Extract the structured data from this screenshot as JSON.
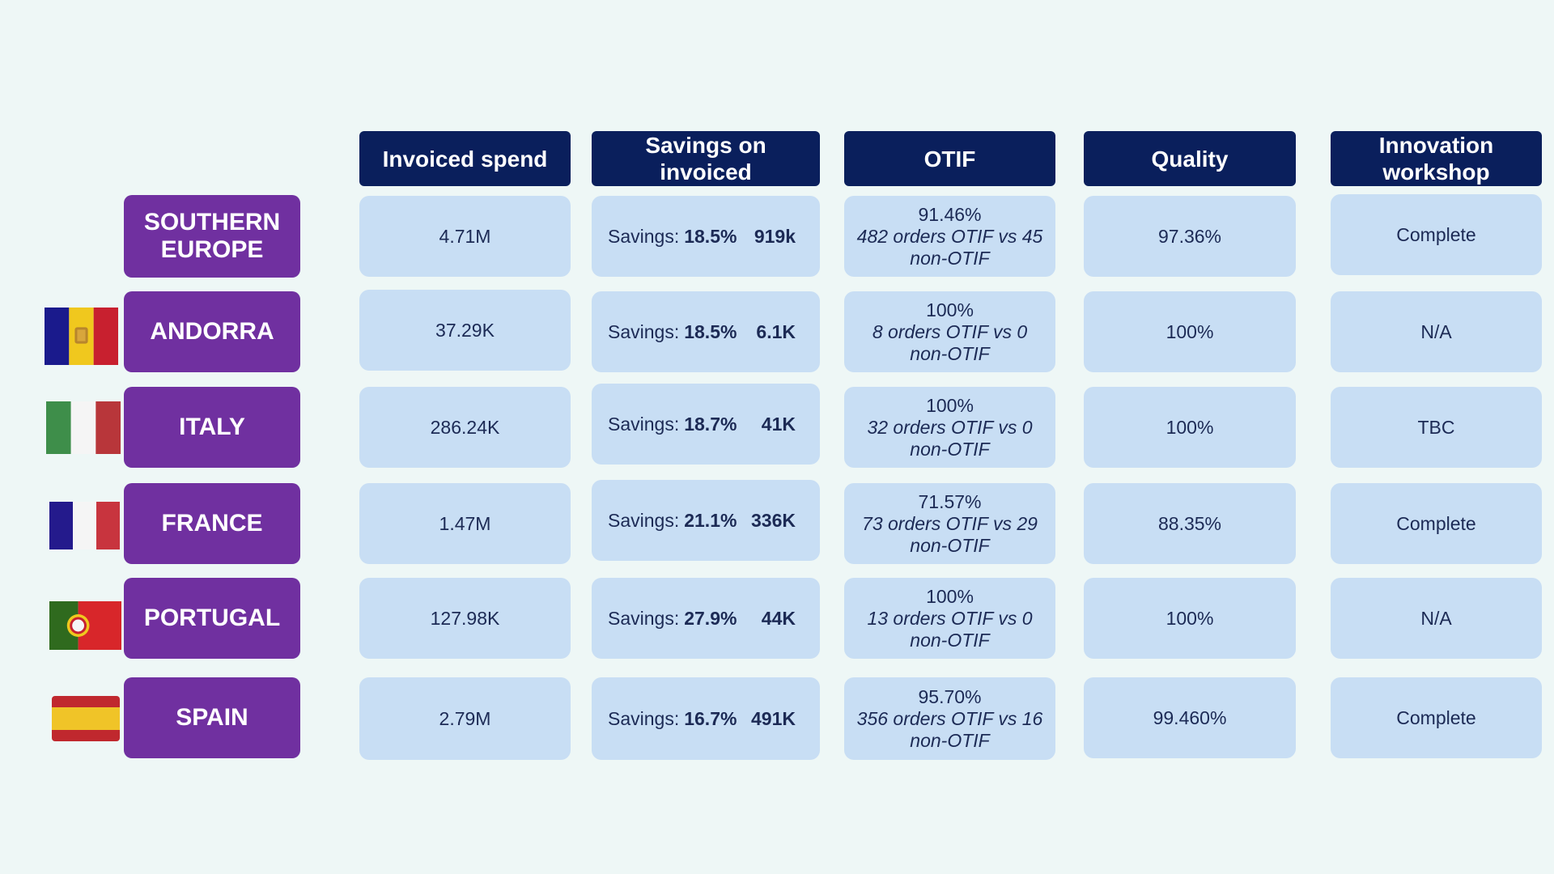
{
  "headers": [
    "Invoiced spend",
    "Savings on invoiced",
    "OTIF",
    "Quality",
    "Innovation workshop"
  ],
  "savings_prefix": "Savings:",
  "rows": [
    {
      "name": "SOUTHERN EUROPE",
      "flag": "none",
      "invoiced": "4.71M",
      "savings_pct": "18.5%",
      "savings_amt": "919k",
      "otif_pct": "91.46%",
      "otif_detail": "482 orders OTIF vs 45 non-OTIF",
      "quality": "97.36%",
      "innovation": "Complete"
    },
    {
      "name": "ANDORRA",
      "flag": "andorra-flag-icon",
      "invoiced": "37.29K",
      "savings_pct": "18.5%",
      "savings_amt": "6.1K",
      "otif_pct": "100%",
      "otif_detail": "8 orders OTIF vs 0 non-OTIF",
      "quality": "100%",
      "innovation": "N/A"
    },
    {
      "name": "ITALY",
      "flag": "italy-flag-icon",
      "invoiced": "286.24K",
      "savings_pct": "18.7%",
      "savings_amt": "41K",
      "otif_pct": "100%",
      "otif_detail": "32 orders OTIF vs 0 non-OTIF",
      "quality": "100%",
      "innovation": "TBC"
    },
    {
      "name": "FRANCE",
      "flag": "france-flag-icon",
      "invoiced": "1.47M",
      "savings_pct": "21.1%",
      "savings_amt": "336K",
      "otif_pct": "71.57%",
      "otif_detail": "73 orders OTIF vs 29 non-OTIF",
      "quality": "88.35%",
      "innovation": "Complete"
    },
    {
      "name": "PORTUGAL",
      "flag": "portugal-flag-icon",
      "invoiced": "127.98K",
      "savings_pct": "27.9%",
      "savings_amt": "44K",
      "otif_pct": "100%",
      "otif_detail": "13 orders OTIF vs 0 non-OTIF",
      "quality": "100%",
      "innovation": "N/A"
    },
    {
      "name": "SPAIN",
      "flag": "spain-flag-icon",
      "invoiced": "2.79M",
      "savings_pct": "16.7%",
      "savings_amt": "491K",
      "otif_pct": "95.70%",
      "otif_detail": "356 orders OTIF vs 16 non-OTIF",
      "quality": "99.460%",
      "innovation": "Complete"
    }
  ],
  "colors": {
    "background": "#eef7f6",
    "header": "#0a1f5c",
    "region": "#7030a0",
    "cell": "#c8def4",
    "text": "#1c2a55"
  }
}
